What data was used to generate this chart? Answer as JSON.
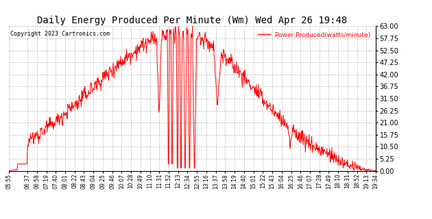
{
  "title": "Daily Energy Produced Per Minute (Wm) Wed Apr 26 19:48",
  "title_fontsize": 11,
  "copyright_text": "Copyright 2023 Cartronics.com",
  "legend_text": "Power Produced(watts/minute)",
  "legend_color": "red",
  "y_min": 0.0,
  "y_max": 63.0,
  "y_ticks": [
    0.0,
    5.25,
    10.5,
    15.75,
    21.0,
    26.25,
    31.5,
    36.75,
    42.0,
    47.25,
    52.5,
    57.75,
    63.0
  ],
  "line_color": "red",
  "bg_color": "white",
  "grid_color": "#aaaaaa",
  "x_tick_labels": [
    "05:55",
    "06:37",
    "06:58",
    "07:19",
    "07:40",
    "08:01",
    "08:22",
    "08:43",
    "09:04",
    "09:25",
    "09:46",
    "10:07",
    "10:28",
    "10:49",
    "11:10",
    "11:31",
    "11:52",
    "12:13",
    "12:34",
    "12:55",
    "13:16",
    "13:37",
    "13:58",
    "14:19",
    "14:40",
    "15:01",
    "15:22",
    "15:43",
    "16:04",
    "16:25",
    "16:46",
    "17:07",
    "17:28",
    "17:49",
    "18:10",
    "18:31",
    "18:52",
    "19:13",
    "19:34"
  ]
}
